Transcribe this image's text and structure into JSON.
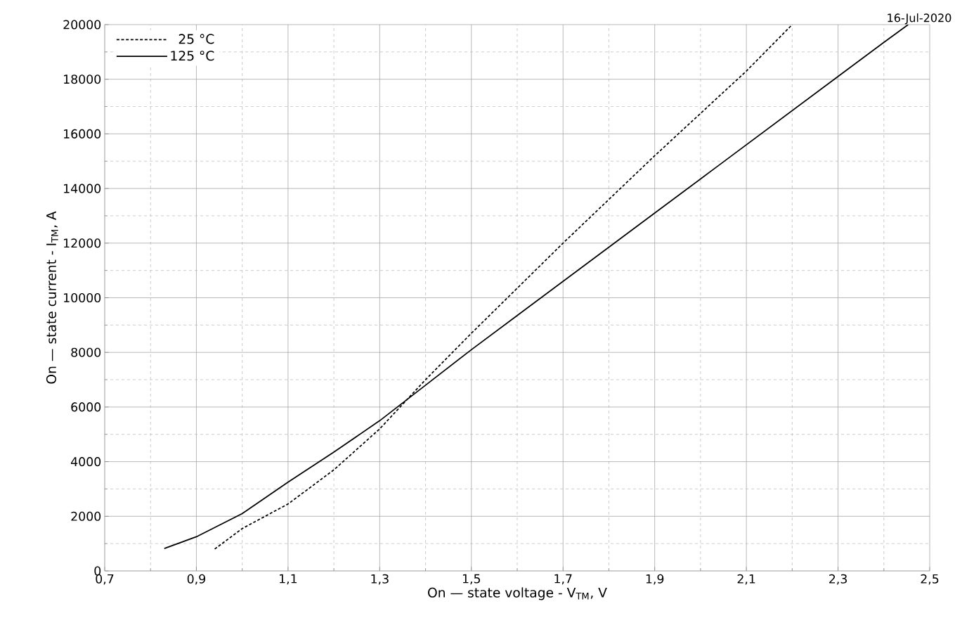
{
  "chart_data": {
    "type": "line",
    "xlabel": "On — state voltage - V$_{TM}$, V",
    "ylabel": "On — state current - I$_{TM}$, A",
    "annotations": [
      "16-Jul-2020"
    ],
    "series": [
      {
        "name": "25 °C",
        "color": "#000000",
        "line_style": "dotted",
        "x": [
          0.94,
          1.0,
          1.1,
          1.2,
          1.3,
          1.4,
          1.5,
          1.6,
          1.7,
          1.8,
          1.9,
          2.0,
          2.1,
          2.2
        ],
        "values": [
          800,
          1550,
          2450,
          3700,
          5200,
          7000,
          8700,
          10350,
          12000,
          13600,
          15200,
          16750,
          18300,
          20000
        ]
      },
      {
        "name": "125 °C",
        "color": "#000000",
        "line_style": "solid",
        "x": [
          0.83,
          0.9,
          1.0,
          1.1,
          1.2,
          1.3,
          1.4,
          1.5,
          1.6,
          1.7,
          1.8,
          1.9,
          2.0,
          2.1,
          2.2,
          2.3,
          2.4,
          2.453
        ],
        "values": [
          820,
          1250,
          2100,
          3250,
          4350,
          5500,
          6800,
          8100,
          9350,
          10600,
          11850,
          13100,
          14350,
          15600,
          16850,
          18100,
          19350,
          20000
        ]
      }
    ],
    "xlim": [
      0.7,
      2.5
    ],
    "xticks": [
      {
        "value": 0.7,
        "label": "0,7"
      },
      {
        "value": 0.9,
        "label": "0,9"
      },
      {
        "value": 1.1,
        "label": "1,1"
      },
      {
        "value": 1.3,
        "label": "1,3"
      },
      {
        "value": 1.5,
        "label": "1,5"
      },
      {
        "value": 1.7,
        "label": "1,7"
      },
      {
        "value": 1.9,
        "label": "1,9"
      },
      {
        "value": 2.1,
        "label": "2,1"
      },
      {
        "value": 2.3,
        "label": "2,3"
      },
      {
        "value": 2.5,
        "label": "2,5"
      }
    ],
    "ylim": [
      0,
      20000
    ],
    "yticks": [
      0,
      2000,
      4000,
      6000,
      8000,
      10000,
      12000,
      14000,
      16000,
      18000,
      20000
    ],
    "grid": true,
    "legend": "top left"
  }
}
